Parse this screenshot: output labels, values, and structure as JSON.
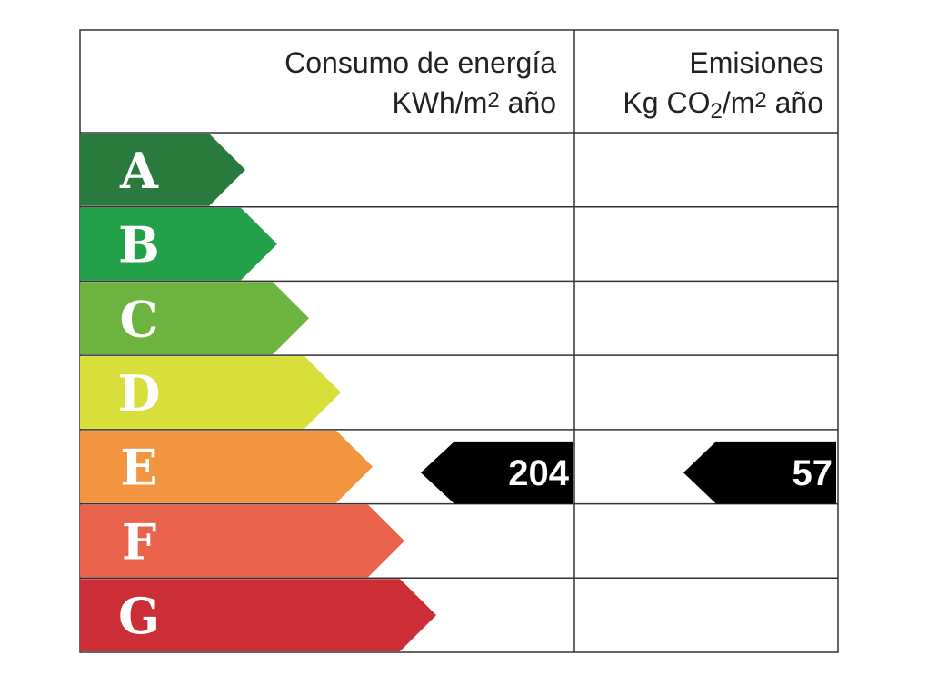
{
  "header": {
    "energy": {
      "line1": "Consumo de energía",
      "unit": [
        "KWh/m",
        "2",
        " año"
      ]
    },
    "emissions": {
      "line1": "Emisiones",
      "unit": [
        "Kg CO",
        "2",
        "/m",
        "2",
        " año"
      ]
    }
  },
  "classes": [
    {
      "letter": "A",
      "color": "#2a7a3e"
    },
    {
      "letter": "B",
      "color": "#22a04a"
    },
    {
      "letter": "C",
      "color": "#6cb33f"
    },
    {
      "letter": "D",
      "color": "#d9de3a"
    },
    {
      "letter": "E",
      "color": "#f39540"
    },
    {
      "letter": "F",
      "color": "#e9634c"
    },
    {
      "letter": "G",
      "color": "#cc2e37"
    }
  ],
  "energy_rating": {
    "class": "E",
    "value": 204
  },
  "emissions_rating": {
    "class": "E",
    "value": 57
  }
}
